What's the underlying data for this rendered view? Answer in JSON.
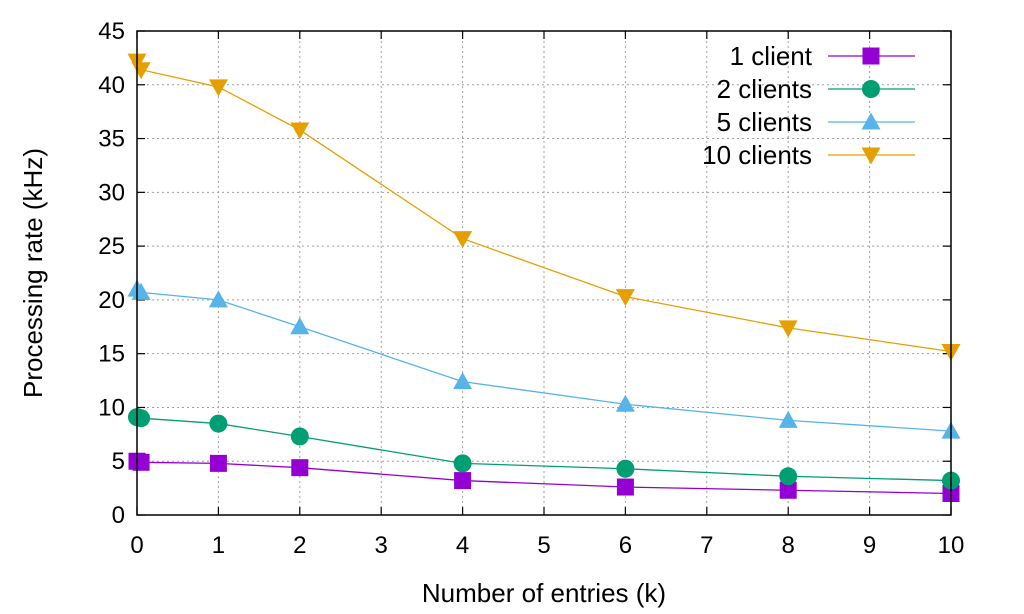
{
  "chart_data": {
    "type": "line",
    "xlabel": "Number of entries (k)",
    "ylabel": "Processing rate (kHz)",
    "xlim": [
      0,
      10
    ],
    "ylim": [
      0,
      45
    ],
    "xticks": [
      0,
      1,
      2,
      3,
      4,
      5,
      6,
      7,
      8,
      9,
      10
    ],
    "yticks": [
      0,
      5,
      10,
      15,
      20,
      25,
      30,
      35,
      40,
      45
    ],
    "grid": true,
    "legend_position": "top-right",
    "series": [
      {
        "name": "1 client",
        "color": "#9400d3",
        "marker": "square",
        "x": [
          0,
          0.05,
          1,
          2,
          4,
          6,
          8,
          10
        ],
        "values": [
          5.0,
          4.9,
          4.8,
          4.4,
          3.2,
          2.6,
          2.3,
          2.0
        ]
      },
      {
        "name": "2 clients",
        "color": "#009e73",
        "marker": "circle",
        "x": [
          0,
          0.05,
          1,
          2,
          4,
          6,
          8,
          10
        ],
        "values": [
          9.1,
          9.0,
          8.5,
          7.3,
          4.8,
          4.3,
          3.6,
          3.2
        ]
      },
      {
        "name": "5 clients",
        "color": "#56b4e9",
        "marker": "triangle-up",
        "x": [
          0,
          0.05,
          1,
          2,
          4,
          6,
          8,
          10
        ],
        "values": [
          21.0,
          20.7,
          20.0,
          17.5,
          12.4,
          10.3,
          8.8,
          7.8
        ]
      },
      {
        "name": "10 clients",
        "color": "#e69f00",
        "marker": "triangle-down",
        "x": [
          0,
          0.05,
          1,
          2,
          4,
          6,
          8,
          10
        ],
        "values": [
          42.2,
          41.4,
          39.8,
          35.8,
          25.7,
          20.3,
          17.4,
          15.2
        ]
      }
    ]
  }
}
